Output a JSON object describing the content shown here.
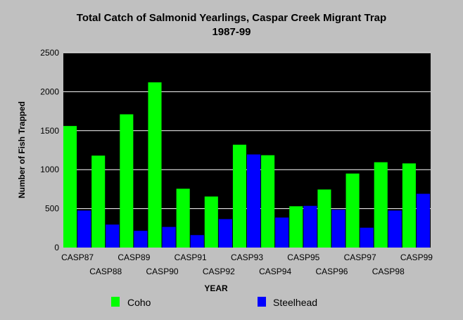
{
  "colors": {
    "background": "#c0c0c0",
    "plot_area": "#000000",
    "gridline": "#ffffff",
    "Coho": "#00ff00",
    "Steelhead": "#0000ff"
  },
  "chart_data": {
    "type": "bar",
    "title": "Total Catch of Salmonid Yearlings, Caspar Creek Migrant Trap",
    "subtitle": "1987-99",
    "xlabel": "YEAR",
    "ylabel": "Number of Fish Trapped",
    "ylim": [
      0,
      2500
    ],
    "yticks": [
      "0",
      "500",
      "1000",
      "1500",
      "2000",
      "2500"
    ],
    "grid": true,
    "legend_position": "bottom",
    "categories": [
      "CASP87",
      "CASP88",
      "CASP89",
      "CASP90",
      "CASP91",
      "CASP92",
      "CASP93",
      "CASP94",
      "CASP95",
      "CASP96",
      "CASP97",
      "CASP98",
      "CASP99"
    ],
    "series": [
      {
        "name": "Coho",
        "values": [
          1560,
          1180,
          1710,
          2120,
          755,
          655,
          1320,
          1185,
          530,
          745,
          950,
          1095,
          1080
        ]
      },
      {
        "name": "Steelhead",
        "values": [
          475,
          295,
          215,
          265,
          160,
          365,
          1195,
          385,
          535,
          485,
          255,
          475,
          690
        ]
      }
    ]
  }
}
